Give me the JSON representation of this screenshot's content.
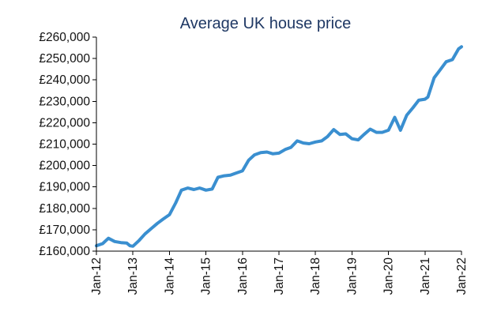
{
  "chart_data": {
    "type": "line",
    "title": "Average UK house price",
    "xlabel": "",
    "ylabel": "",
    "ylim": [
      160000,
      260000
    ],
    "grid": false,
    "legend": "none",
    "x_range": [
      2012.0,
      2022.0
    ],
    "y_ticks": [
      {
        "value": 160000,
        "label": "£160,000"
      },
      {
        "value": 170000,
        "label": "£170,000"
      },
      {
        "value": 180000,
        "label": "£180,000"
      },
      {
        "value": 190000,
        "label": "£190,000"
      },
      {
        "value": 200000,
        "label": "£200,000"
      },
      {
        "value": 210000,
        "label": "£210,000"
      },
      {
        "value": 220000,
        "label": "£220,000"
      },
      {
        "value": 230000,
        "label": "£230,000"
      },
      {
        "value": 240000,
        "label": "£240,000"
      },
      {
        "value": 250000,
        "label": "£250,000"
      },
      {
        "value": 260000,
        "label": "£260,000"
      }
    ],
    "x_ticks": [
      {
        "value": 2012,
        "label": "Jan-12"
      },
      {
        "value": 2013,
        "label": "Jan-13"
      },
      {
        "value": 2014,
        "label": "Jan-14"
      },
      {
        "value": 2015,
        "label": "Jan-15"
      },
      {
        "value": 2016,
        "label": "Jan-16"
      },
      {
        "value": 2017,
        "label": "Jan-17"
      },
      {
        "value": 2018,
        "label": "Jan-18"
      },
      {
        "value": 2019,
        "label": "Jan-19"
      },
      {
        "value": 2020,
        "label": "Jan-20"
      },
      {
        "value": 2021,
        "label": "Jan-21"
      },
      {
        "value": 2022,
        "label": "Jan-22"
      }
    ],
    "series": [
      {
        "name": "Average UK house price",
        "color": "#3a8fd0",
        "points": [
          [
            2012.0,
            162500
          ],
          [
            2012.17,
            163500
          ],
          [
            2012.33,
            166000
          ],
          [
            2012.5,
            164500
          ],
          [
            2012.67,
            164000
          ],
          [
            2012.83,
            163800
          ],
          [
            2012.92,
            162500
          ],
          [
            2013.0,
            162300
          ],
          [
            2013.17,
            165000
          ],
          [
            2013.33,
            168000
          ],
          [
            2013.5,
            170500
          ],
          [
            2013.67,
            173000
          ],
          [
            2013.83,
            175000
          ],
          [
            2014.0,
            177000
          ],
          [
            2014.17,
            182500
          ],
          [
            2014.33,
            188500
          ],
          [
            2014.5,
            189500
          ],
          [
            2014.67,
            188800
          ],
          [
            2014.83,
            189500
          ],
          [
            2015.0,
            188500
          ],
          [
            2015.17,
            189000
          ],
          [
            2015.33,
            194500
          ],
          [
            2015.5,
            195200
          ],
          [
            2015.67,
            195500
          ],
          [
            2015.83,
            196500
          ],
          [
            2016.0,
            197500
          ],
          [
            2016.17,
            202500
          ],
          [
            2016.33,
            205000
          ],
          [
            2016.5,
            206000
          ],
          [
            2016.67,
            206300
          ],
          [
            2016.83,
            205500
          ],
          [
            2017.0,
            205800
          ],
          [
            2017.17,
            207500
          ],
          [
            2017.33,
            208500
          ],
          [
            2017.5,
            211500
          ],
          [
            2017.67,
            210500
          ],
          [
            2017.83,
            210200
          ],
          [
            2018.0,
            211000
          ],
          [
            2018.17,
            211500
          ],
          [
            2018.33,
            213500
          ],
          [
            2018.5,
            216800
          ],
          [
            2018.67,
            214500
          ],
          [
            2018.83,
            214800
          ],
          [
            2019.0,
            212500
          ],
          [
            2019.17,
            212000
          ],
          [
            2019.33,
            214500
          ],
          [
            2019.5,
            217000
          ],
          [
            2019.67,
            215500
          ],
          [
            2019.83,
            215500
          ],
          [
            2020.0,
            216500
          ],
          [
            2020.17,
            222500
          ],
          [
            2020.33,
            216500
          ],
          [
            2020.5,
            223500
          ],
          [
            2020.67,
            227000
          ],
          [
            2020.83,
            230500
          ],
          [
            2021.0,
            231000
          ],
          [
            2021.08,
            232000
          ],
          [
            2021.25,
            241000
          ],
          [
            2021.42,
            244800
          ],
          [
            2021.58,
            248500
          ],
          [
            2021.75,
            249500
          ],
          [
            2021.92,
            254500
          ],
          [
            2022.0,
            255500
          ]
        ]
      }
    ]
  }
}
